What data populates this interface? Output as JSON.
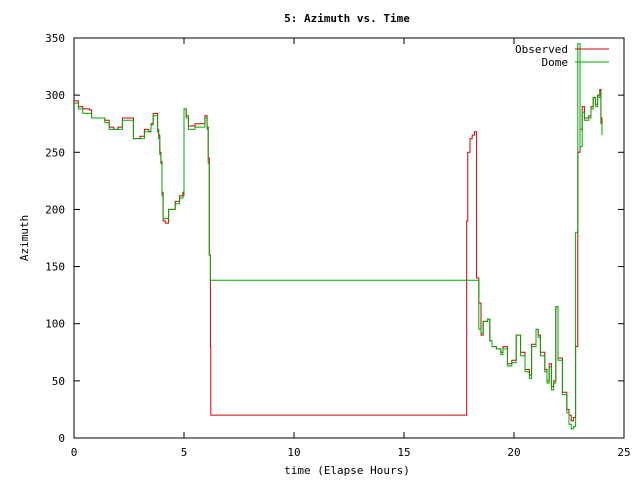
{
  "chart_data": {
    "type": "line",
    "title": "5: Azimuth vs. Time",
    "xlabel": "time (Elapse Hours)",
    "ylabel": "Azimuth",
    "xlim": [
      0,
      25
    ],
    "ylim": [
      0,
      350
    ],
    "xticks": [
      0,
      5,
      10,
      15,
      20,
      25
    ],
    "yticks": [
      0,
      50,
      100,
      150,
      200,
      250,
      300,
      350
    ],
    "grid": false,
    "legend_position": "top-right",
    "series": [
      {
        "name": "Observed",
        "color": "#cc0000",
        "points": [
          [
            0.0,
            295
          ],
          [
            0.2,
            290
          ],
          [
            0.4,
            288
          ],
          [
            0.7,
            287
          ],
          [
            0.8,
            280
          ],
          [
            1.2,
            280
          ],
          [
            1.4,
            278
          ],
          [
            1.6,
            272
          ],
          [
            1.8,
            270
          ],
          [
            2.0,
            272
          ],
          [
            2.2,
            280
          ],
          [
            2.6,
            280
          ],
          [
            2.7,
            262
          ],
          [
            3.0,
            264
          ],
          [
            3.2,
            270
          ],
          [
            3.4,
            268
          ],
          [
            3.5,
            275
          ],
          [
            3.6,
            284
          ],
          [
            3.75,
            284
          ],
          [
            3.8,
            270
          ],
          [
            3.85,
            265
          ],
          [
            3.9,
            250
          ],
          [
            3.95,
            242
          ],
          [
            4.0,
            215
          ],
          [
            4.05,
            190
          ],
          [
            4.15,
            188
          ],
          [
            4.3,
            200
          ],
          [
            4.6,
            207
          ],
          [
            4.8,
            212
          ],
          [
            4.95,
            215
          ],
          [
            5.0,
            288
          ],
          [
            5.1,
            282
          ],
          [
            5.2,
            273
          ],
          [
            5.5,
            275
          ],
          [
            5.8,
            275
          ],
          [
            5.95,
            282
          ],
          [
            6.05,
            272
          ],
          [
            6.1,
            245
          ],
          [
            6.15,
            160
          ],
          [
            6.2,
            80
          ],
          [
            6.22,
            20
          ],
          [
            17.8,
            20
          ],
          [
            17.85,
            190
          ],
          [
            17.9,
            250
          ],
          [
            18.0,
            262
          ],
          [
            18.1,
            265
          ],
          [
            18.2,
            268
          ],
          [
            18.3,
            140
          ],
          [
            18.4,
            118
          ],
          [
            18.5,
            90
          ],
          [
            18.6,
            102
          ],
          [
            18.8,
            104
          ],
          [
            18.9,
            85
          ],
          [
            19.0,
            80
          ],
          [
            19.2,
            78
          ],
          [
            19.4,
            75
          ],
          [
            19.5,
            80
          ],
          [
            19.7,
            65
          ],
          [
            19.9,
            68
          ],
          [
            20.1,
            90
          ],
          [
            20.3,
            75
          ],
          [
            20.5,
            60
          ],
          [
            20.7,
            55
          ],
          [
            20.8,
            82
          ],
          [
            21.0,
            95
          ],
          [
            21.1,
            90
          ],
          [
            21.2,
            75
          ],
          [
            21.4,
            60
          ],
          [
            21.5,
            50
          ],
          [
            21.6,
            65
          ],
          [
            21.7,
            45
          ],
          [
            21.8,
            50
          ],
          [
            21.9,
            115
          ],
          [
            22.0,
            70
          ],
          [
            22.2,
            40
          ],
          [
            22.4,
            25
          ],
          [
            22.5,
            20
          ],
          [
            22.6,
            15
          ],
          [
            22.7,
            18
          ],
          [
            22.8,
            80
          ],
          [
            22.9,
            250
          ],
          [
            23.0,
            270
          ],
          [
            23.1,
            290
          ],
          [
            23.2,
            280
          ],
          [
            23.4,
            282
          ],
          [
            23.5,
            290
          ],
          [
            23.6,
            298
          ],
          [
            23.7,
            292
          ],
          [
            23.8,
            300
          ],
          [
            23.9,
            305
          ],
          [
            23.95,
            280
          ],
          [
            24.0,
            265
          ]
        ]
      },
      {
        "name": "Dome",
        "color": "#00aa00",
        "points": [
          [
            0.0,
            293
          ],
          [
            0.2,
            288
          ],
          [
            0.4,
            284
          ],
          [
            0.7,
            284
          ],
          [
            0.8,
            280
          ],
          [
            1.2,
            280
          ],
          [
            1.4,
            276
          ],
          [
            1.6,
            270
          ],
          [
            1.8,
            270
          ],
          [
            2.0,
            270
          ],
          [
            2.2,
            278
          ],
          [
            2.6,
            278
          ],
          [
            2.7,
            262
          ],
          [
            3.0,
            262
          ],
          [
            3.2,
            268
          ],
          [
            3.4,
            268
          ],
          [
            3.5,
            274
          ],
          [
            3.6,
            282
          ],
          [
            3.75,
            282
          ],
          [
            3.8,
            268
          ],
          [
            3.85,
            262
          ],
          [
            3.9,
            248
          ],
          [
            3.95,
            240
          ],
          [
            4.0,
            212
          ],
          [
            4.05,
            192
          ],
          [
            4.15,
            192
          ],
          [
            4.3,
            200
          ],
          [
            4.6,
            205
          ],
          [
            4.8,
            210
          ],
          [
            4.95,
            212
          ],
          [
            5.0,
            288
          ],
          [
            5.1,
            280
          ],
          [
            5.2,
            270
          ],
          [
            5.5,
            272
          ],
          [
            5.8,
            272
          ],
          [
            5.95,
            280
          ],
          [
            6.05,
            270
          ],
          [
            6.1,
            240
          ],
          [
            6.15,
            160
          ],
          [
            6.2,
            138
          ],
          [
            18.3,
            138
          ],
          [
            18.4,
            95
          ],
          [
            18.5,
            92
          ],
          [
            18.6,
            102
          ],
          [
            18.8,
            104
          ],
          [
            18.9,
            85
          ],
          [
            19.0,
            80
          ],
          [
            19.2,
            78
          ],
          [
            19.4,
            73
          ],
          [
            19.5,
            78
          ],
          [
            19.7,
            63
          ],
          [
            19.9,
            66
          ],
          [
            20.1,
            90
          ],
          [
            20.3,
            72
          ],
          [
            20.5,
            58
          ],
          [
            20.7,
            52
          ],
          [
            20.8,
            80
          ],
          [
            21.0,
            95
          ],
          [
            21.1,
            88
          ],
          [
            21.2,
            72
          ],
          [
            21.4,
            58
          ],
          [
            21.5,
            48
          ],
          [
            21.6,
            62
          ],
          [
            21.7,
            42
          ],
          [
            21.8,
            48
          ],
          [
            21.9,
            115
          ],
          [
            22.0,
            68
          ],
          [
            22.2,
            38
          ],
          [
            22.4,
            22
          ],
          [
            22.5,
            12
          ],
          [
            22.6,
            8
          ],
          [
            22.7,
            10
          ],
          [
            22.8,
            180
          ],
          [
            22.9,
            345
          ],
          [
            23.0,
            255
          ],
          [
            23.1,
            285
          ],
          [
            23.2,
            278
          ],
          [
            23.4,
            280
          ],
          [
            23.5,
            288
          ],
          [
            23.6,
            298
          ],
          [
            23.7,
            290
          ],
          [
            23.8,
            298
          ],
          [
            23.9,
            303
          ],
          [
            23.95,
            275
          ],
          [
            24.0,
            265
          ]
        ]
      }
    ]
  }
}
